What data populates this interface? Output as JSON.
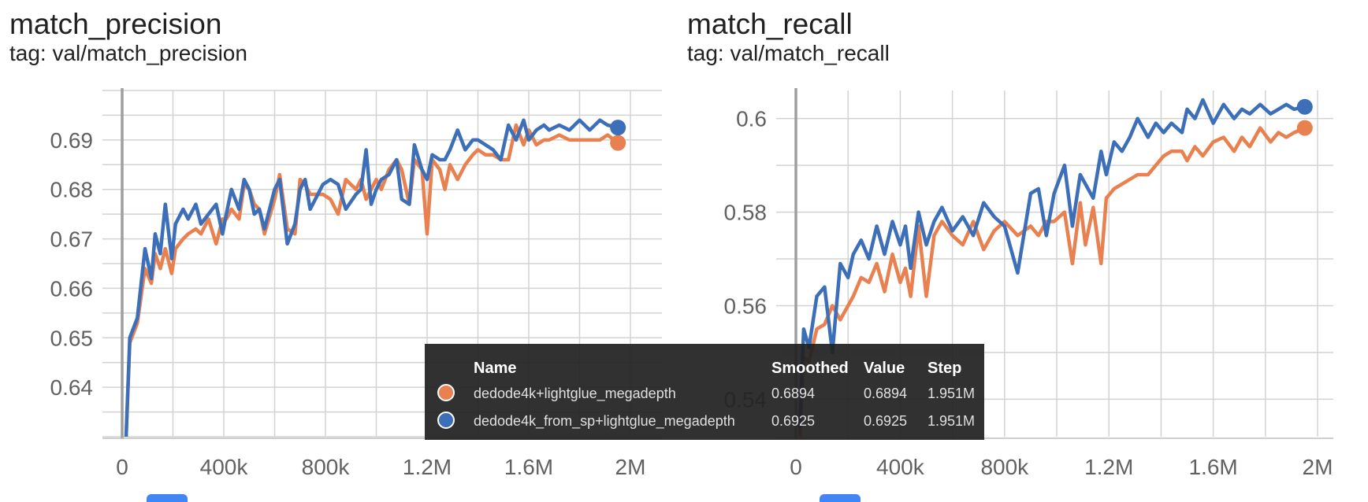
{
  "cards": [
    {
      "title": "match_precision",
      "tag": "tag: val/match_precision"
    },
    {
      "title": "match_recall",
      "tag": "tag: val/match_recall"
    }
  ],
  "tooltip": {
    "headers": {
      "name": "Name",
      "smoothed": "Smoothed",
      "value": "Value",
      "step": "Step"
    },
    "rows": [
      {
        "name": "dedode4k+lightglue_megadepth",
        "smoothed": "0.6894",
        "value": "0.6894",
        "step": "1.951M",
        "color": "#e8804f"
      },
      {
        "name": "dedode4k_from_sp+lightglue_megadepth",
        "smoothed": "0.6925",
        "value": "0.6925",
        "step": "1.951M",
        "color": "#3c6fb8"
      }
    ]
  },
  "chart_data": [
    {
      "type": "line",
      "title": "match_precision",
      "xlabel": "",
      "ylabel": "",
      "xlim": [
        0,
        2100000
      ],
      "ylim": [
        0.63,
        0.7
      ],
      "xticks": [
        0,
        400000,
        800000,
        1200000,
        1600000,
        2000000
      ],
      "xtick_labels": [
        "0",
        "400k",
        "800k",
        "1.2M",
        "1.6M",
        "2M"
      ],
      "yticks": [
        0.64,
        0.65,
        0.66,
        0.67,
        0.68,
        0.69
      ],
      "ytick_labels": [
        "0.64",
        "0.65",
        "0.66",
        "0.67",
        "0.68",
        "0.69"
      ],
      "grid": true,
      "series": [
        {
          "name": "dedode4k+lightglue_megadepth",
          "color": "#e8804f",
          "x": [
            15000,
            30000,
            60000,
            90000,
            115000,
            130000,
            150000,
            170000,
            195000,
            210000,
            240000,
            260000,
            290000,
            310000,
            340000,
            370000,
            395000,
            410000,
            430000,
            460000,
            480000,
            500000,
            520000,
            540000,
            560000,
            600000,
            620000,
            650000,
            680000,
            700000,
            720000,
            740000,
            760000,
            790000,
            820000,
            850000,
            880000,
            920000,
            940000,
            960000,
            980000,
            1000000,
            1020000,
            1050000,
            1080000,
            1100000,
            1130000,
            1150000,
            1180000,
            1200000,
            1220000,
            1250000,
            1270000,
            1290000,
            1320000,
            1350000,
            1380000,
            1400000,
            1430000,
            1460000,
            1490000,
            1520000,
            1550000,
            1580000,
            1600000,
            1630000,
            1660000,
            1680000,
            1720000,
            1760000,
            1800000,
            1840000,
            1880000,
            1910000,
            1951000
          ],
          "y": [
            0.629,
            0.649,
            0.653,
            0.664,
            0.661,
            0.667,
            0.664,
            0.668,
            0.663,
            0.668,
            0.67,
            0.671,
            0.672,
            0.671,
            0.674,
            0.669,
            0.674,
            0.674,
            0.676,
            0.674,
            0.681,
            0.68,
            0.677,
            0.676,
            0.671,
            0.678,
            0.683,
            0.672,
            0.671,
            0.682,
            0.681,
            0.679,
            0.679,
            0.679,
            0.678,
            0.675,
            0.682,
            0.68,
            0.682,
            0.678,
            0.68,
            0.682,
            0.68,
            0.684,
            0.686,
            0.684,
            0.677,
            0.686,
            0.684,
            0.671,
            0.686,
            0.684,
            0.68,
            0.685,
            0.682,
            0.685,
            0.687,
            0.688,
            0.687,
            0.687,
            0.686,
            0.686,
            0.693,
            0.689,
            0.692,
            0.689,
            0.69,
            0.69,
            0.691,
            0.69,
            0.69,
            0.69,
            0.69,
            0.691,
            0.6894
          ]
        },
        {
          "name": "dedode4k_from_sp+lightglue_megadepth",
          "color": "#3c6fb8",
          "x": [
            15000,
            30000,
            60000,
            90000,
            115000,
            130000,
            150000,
            170000,
            195000,
            210000,
            240000,
            260000,
            290000,
            310000,
            340000,
            370000,
            395000,
            410000,
            430000,
            460000,
            480000,
            500000,
            520000,
            540000,
            560000,
            600000,
            620000,
            650000,
            680000,
            700000,
            720000,
            740000,
            760000,
            790000,
            820000,
            850000,
            880000,
            920000,
            940000,
            960000,
            980000,
            1000000,
            1020000,
            1050000,
            1080000,
            1100000,
            1130000,
            1150000,
            1180000,
            1200000,
            1220000,
            1250000,
            1270000,
            1290000,
            1320000,
            1350000,
            1380000,
            1400000,
            1430000,
            1460000,
            1490000,
            1520000,
            1550000,
            1580000,
            1600000,
            1630000,
            1660000,
            1680000,
            1720000,
            1760000,
            1800000,
            1840000,
            1880000,
            1910000,
            1951000
          ],
          "y": [
            0.629,
            0.65,
            0.654,
            0.668,
            0.662,
            0.671,
            0.667,
            0.677,
            0.666,
            0.673,
            0.676,
            0.674,
            0.677,
            0.673,
            0.675,
            0.677,
            0.671,
            0.675,
            0.68,
            0.676,
            0.682,
            0.68,
            0.675,
            0.676,
            0.672,
            0.68,
            0.682,
            0.669,
            0.673,
            0.68,
            0.682,
            0.676,
            0.678,
            0.681,
            0.682,
            0.681,
            0.676,
            0.679,
            0.68,
            0.688,
            0.677,
            0.68,
            0.682,
            0.683,
            0.686,
            0.678,
            0.677,
            0.689,
            0.684,
            0.682,
            0.687,
            0.686,
            0.686,
            0.688,
            0.692,
            0.688,
            0.69,
            0.69,
            0.689,
            0.688,
            0.686,
            0.693,
            0.69,
            0.694,
            0.69,
            0.692,
            0.693,
            0.692,
            0.693,
            0.692,
            0.694,
            0.692,
            0.694,
            0.693,
            0.6925
          ]
        }
      ]
    },
    {
      "type": "line",
      "title": "match_recall",
      "xlabel": "",
      "ylabel": "",
      "xlim": [
        0,
        2100000
      ],
      "ylim": [
        0.532,
        0.606
      ],
      "xticks": [
        0,
        400000,
        800000,
        1200000,
        1600000,
        2000000
      ],
      "xtick_labels": [
        "0",
        "400k",
        "800k",
        "1.2M",
        "1.6M",
        "2M"
      ],
      "yticks": [
        0.54,
        0.56,
        0.58,
        0.6
      ],
      "ytick_labels": [
        "0.54",
        "0.56",
        "0.58",
        "0.6"
      ],
      "grid": true,
      "series": [
        {
          "name": "dedode4k+lightglue_megadepth",
          "color": "#e8804f",
          "x": [
            15000,
            30000,
            50000,
            80000,
            110000,
            140000,
            170000,
            200000,
            220000,
            250000,
            280000,
            310000,
            340000,
            370000,
            400000,
            420000,
            440000,
            470000,
            500000,
            530000,
            560000,
            600000,
            640000,
            680000,
            720000,
            760000,
            800000,
            850000,
            900000,
            930000,
            960000,
            990000,
            1030000,
            1060000,
            1090000,
            1110000,
            1140000,
            1170000,
            1190000,
            1220000,
            1250000,
            1280000,
            1310000,
            1350000,
            1380000,
            1410000,
            1440000,
            1480000,
            1500000,
            1530000,
            1560000,
            1600000,
            1640000,
            1680000,
            1710000,
            1740000,
            1780000,
            1820000,
            1850000,
            1880000,
            1910000,
            1951000
          ],
          "y": [
            0.532,
            0.549,
            0.548,
            0.555,
            0.556,
            0.56,
            0.557,
            0.56,
            0.562,
            0.566,
            0.565,
            0.569,
            0.563,
            0.571,
            0.565,
            0.568,
            0.562,
            0.577,
            0.562,
            0.575,
            0.578,
            0.575,
            0.573,
            0.578,
            0.572,
            0.576,
            0.578,
            0.575,
            0.577,
            0.575,
            0.578,
            0.578,
            0.58,
            0.569,
            0.582,
            0.573,
            0.581,
            0.569,
            0.583,
            0.585,
            0.586,
            0.587,
            0.588,
            0.588,
            0.59,
            0.592,
            0.593,
            0.593,
            0.591,
            0.594,
            0.592,
            0.595,
            0.596,
            0.593,
            0.596,
            0.594,
            0.598,
            0.595,
            0.597,
            0.596,
            0.597,
            0.598
          ]
        },
        {
          "name": "dedode4k_from_sp+lightglue_megadepth",
          "color": "#3c6fb8",
          "x": [
            15000,
            30000,
            50000,
            80000,
            110000,
            140000,
            170000,
            200000,
            220000,
            250000,
            280000,
            310000,
            340000,
            370000,
            400000,
            420000,
            440000,
            470000,
            500000,
            530000,
            560000,
            600000,
            640000,
            680000,
            720000,
            760000,
            800000,
            850000,
            900000,
            930000,
            960000,
            990000,
            1030000,
            1060000,
            1090000,
            1110000,
            1140000,
            1170000,
            1190000,
            1220000,
            1250000,
            1280000,
            1310000,
            1350000,
            1380000,
            1410000,
            1440000,
            1480000,
            1500000,
            1530000,
            1560000,
            1600000,
            1640000,
            1680000,
            1710000,
            1740000,
            1780000,
            1820000,
            1850000,
            1880000,
            1910000,
            1951000
          ],
          "y": [
            0.534,
            0.555,
            0.551,
            0.562,
            0.564,
            0.55,
            0.569,
            0.566,
            0.571,
            0.574,
            0.57,
            0.577,
            0.571,
            0.578,
            0.573,
            0.577,
            0.568,
            0.58,
            0.573,
            0.578,
            0.581,
            0.576,
            0.579,
            0.575,
            0.582,
            0.579,
            0.577,
            0.567,
            0.584,
            0.585,
            0.575,
            0.584,
            0.59,
            0.577,
            0.588,
            0.586,
            0.583,
            0.593,
            0.588,
            0.595,
            0.593,
            0.596,
            0.6,
            0.596,
            0.599,
            0.597,
            0.599,
            0.597,
            0.602,
            0.6,
            0.604,
            0.599,
            0.603,
            0.6,
            0.602,
            0.601,
            0.603,
            0.601,
            0.602,
            0.603,
            0.602,
            0.6025
          ]
        }
      ]
    }
  ]
}
